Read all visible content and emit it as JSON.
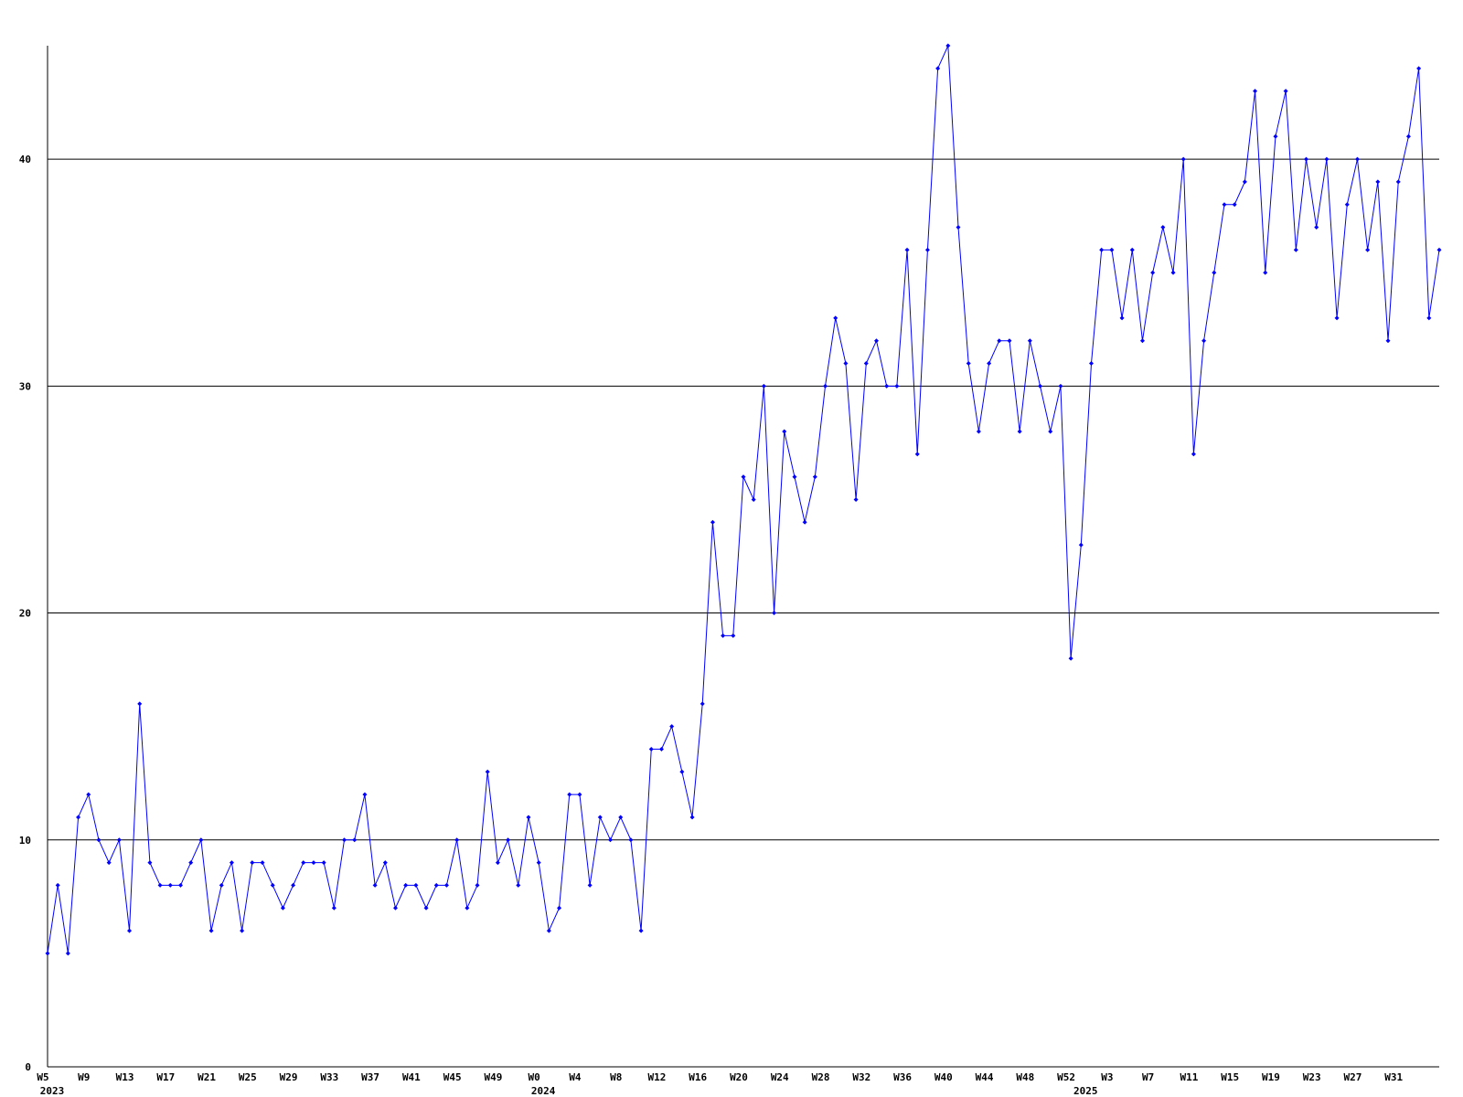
{
  "chart_data": {
    "type": "line",
    "categories": [
      "W5",
      null,
      null,
      null,
      "W9",
      null,
      null,
      null,
      "W13",
      null,
      null,
      null,
      "W17",
      null,
      null,
      null,
      "W21",
      null,
      null,
      null,
      "W25",
      null,
      null,
      null,
      "W29",
      null,
      null,
      null,
      "W33",
      null,
      null,
      null,
      "W37",
      null,
      null,
      null,
      "W41",
      null,
      null,
      null,
      "W45",
      null,
      null,
      null,
      "W49",
      null,
      null,
      null,
      "W0",
      null,
      null,
      null,
      "W4",
      null,
      null,
      null,
      "W8",
      null,
      null,
      null,
      "W12",
      null,
      null,
      null,
      "W16",
      null,
      null,
      null,
      "W20",
      null,
      null,
      null,
      "W24",
      null,
      null,
      null,
      "W28",
      null,
      null,
      null,
      "W32",
      null,
      null,
      null,
      "W36",
      null,
      null,
      null,
      "W40",
      null,
      null,
      null,
      "W44",
      null,
      null,
      null,
      "W48",
      null,
      null,
      null,
      "W52",
      null,
      null,
      null,
      "W3",
      null,
      null,
      null,
      "W7",
      null,
      null,
      null,
      "W11",
      null,
      null,
      null,
      "W15",
      null,
      null,
      null,
      "W19",
      null,
      null,
      null,
      "W23",
      null,
      null,
      null,
      "W27",
      null,
      null,
      null,
      "W31",
      null,
      null,
      null,
      null
    ],
    "year_labels": [
      "2023",
      null,
      null,
      null,
      null,
      null,
      null,
      null,
      null,
      null,
      null,
      null,
      null,
      null,
      null,
      null,
      null,
      null,
      null,
      null,
      null,
      null,
      null,
      null,
      null,
      null,
      null,
      null,
      null,
      null,
      null,
      null,
      null,
      null,
      null,
      null,
      null,
      null,
      null,
      null,
      null,
      null,
      null,
      null,
      null,
      null,
      null,
      null,
      "2024",
      null,
      null,
      null,
      null,
      null,
      null,
      null,
      null,
      null,
      null,
      null,
      null,
      null,
      null,
      null,
      null,
      null,
      null,
      null,
      null,
      null,
      null,
      null,
      null,
      null,
      null,
      null,
      null,
      null,
      null,
      null,
      null,
      null,
      null,
      null,
      null,
      null,
      null,
      null,
      null,
      null,
      null,
      null,
      null,
      null,
      null,
      null,
      null,
      null,
      null,
      null,
      null,
      "2025",
      null,
      null,
      null,
      null,
      null,
      null,
      null,
      null,
      null,
      null,
      null,
      null,
      null,
      null,
      null,
      null,
      null,
      null,
      null,
      null,
      null,
      null,
      null,
      null,
      null,
      null,
      null,
      null,
      null,
      null,
      null,
      null,
      null,
      null,
      null
    ],
    "values": [
      5,
      8,
      5,
      11,
      12,
      10,
      9,
      10,
      6,
      16,
      9,
      8,
      8,
      8,
      9,
      10,
      6,
      8,
      9,
      6,
      9,
      9,
      8,
      7,
      8,
      9,
      9,
      9,
      7,
      10,
      10,
      12,
      8,
      9,
      7,
      8,
      8,
      7,
      8,
      8,
      10,
      7,
      8,
      13,
      9,
      10,
      8,
      11,
      9,
      6,
      7,
      12,
      12,
      8,
      11,
      10,
      11,
      10,
      6,
      14,
      14,
      15,
      13,
      11,
      16,
      24,
      19,
      19,
      26,
      25,
      30,
      20,
      28,
      26,
      24,
      26,
      30,
      33,
      31,
      25,
      31,
      32,
      30,
      30,
      36,
      27,
      36,
      44,
      45,
      37,
      31,
      28,
      31,
      32,
      32,
      28,
      32,
      30,
      28,
      30,
      18,
      23,
      31,
      36,
      36,
      33,
      36,
      32,
      35,
      37,
      35,
      40,
      27,
      32,
      35,
      38,
      38,
      39,
      43,
      35,
      41,
      43,
      36,
      40,
      37,
      40,
      33,
      38,
      40,
      36,
      39,
      32,
      39,
      41,
      44,
      33,
      36
    ],
    "color": "#0000ff",
    "ylim": [
      0,
      45
    ],
    "yticks": [
      0,
      10,
      20,
      30,
      40
    ],
    "grid": true
  }
}
